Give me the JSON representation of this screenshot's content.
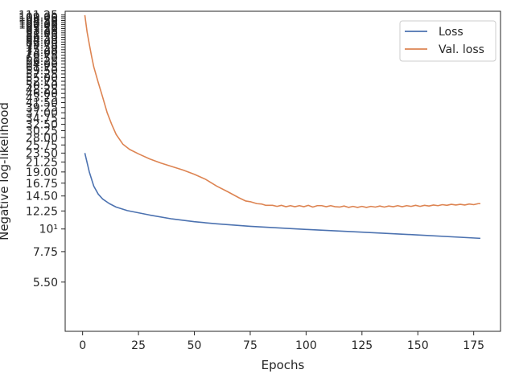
{
  "chart_data": {
    "type": "line",
    "xlabel": "Epochs",
    "ylabel": "Negative log-likelihood",
    "yscale": "log",
    "xlim": [
      -7.8,
      187
    ],
    "ylim": [
      3.16,
      116
    ],
    "x_ticks": [
      0,
      25,
      50,
      75,
      100,
      125,
      150,
      175
    ],
    "x_tick_labels": [
      "0",
      "25",
      "50",
      "75",
      "100",
      "125",
      "150",
      "175"
    ],
    "y_ticks": [
      5.5,
      7.75,
      10,
      12.25,
      14.5,
      16.75,
      19.0,
      21.25,
      23.5,
      25.75,
      28.0,
      30.25,
      32.5,
      34.75,
      37.0,
      39.25,
      41.5,
      43.75,
      46.0,
      48.25,
      50.5,
      52.75,
      55.0,
      57.25,
      59.5,
      61.75,
      64.0,
      66.25,
      68.5,
      70.75,
      73.0,
      75.25,
      77.5,
      79.75,
      82.0,
      84.25,
      86.5,
      88.75,
      91.0,
      93.25,
      95.5,
      97.75,
      100.0,
      102.25,
      104.5,
      106.75,
      109.0,
      111.25
    ],
    "y_tick_labels": [
      "5.50",
      "7.75",
      "10¹",
      "12.25",
      "14.50",
      "16.75",
      "19.00",
      "21.25",
      "23.50",
      "25.75",
      "28.00",
      "30.25",
      "32.50",
      "34.75",
      "37.00",
      "39.25",
      "41.50",
      "43.75",
      "46.00",
      "48.25",
      "50.50",
      "52.75",
      "55.00",
      "57.25",
      "59.50",
      "61.75",
      "64.00",
      "66.25",
      "68.50",
      "70.75",
      "73.00",
      "75.25",
      "77.50",
      "79.75",
      "82.00",
      "84.25",
      "86.50",
      "88.75",
      "91.00",
      "93.25",
      "95.50",
      "97.75",
      "100.00",
      "102.25",
      "104.50",
      "106.75",
      "109.00",
      "111.25"
    ],
    "legend_position": "top-right",
    "grid": false,
    "series": [
      {
        "name": "Loss",
        "color": "#4c72b0",
        "x": [
          1,
          3,
          5,
          7,
          9,
          12,
          15,
          20,
          25,
          30,
          40,
          50,
          60,
          75,
          100,
          125,
          150,
          178
        ],
        "values": [
          23.5,
          19.0,
          16.2,
          14.8,
          14.0,
          13.3,
          12.8,
          12.3,
          12.0,
          11.7,
          11.2,
          10.85,
          10.6,
          10.3,
          9.95,
          9.65,
          9.35,
          9.0
        ]
      },
      {
        "name": "Val. loss",
        "color": "#dd8452",
        "x": [
          1,
          2,
          3,
          4,
          5,
          7,
          9,
          11,
          13,
          15,
          18,
          21,
          25,
          30,
          35,
          40,
          45,
          50,
          55,
          60,
          65,
          70,
          73,
          75,
          78,
          80,
          82,
          85,
          87,
          89,
          91,
          93,
          95,
          97,
          99,
          101,
          103,
          105,
          107,
          109,
          111,
          113,
          115,
          117,
          119,
          121,
          123,
          125,
          127,
          129,
          131,
          133,
          135,
          137,
          139,
          141,
          143,
          145,
          147,
          149,
          151,
          153,
          155,
          157,
          159,
          161,
          163,
          165,
          167,
          169,
          171,
          173,
          175,
          177,
          178
        ],
        "values": [
          111.0,
          92.0,
          80.0,
          70.0,
          62.0,
          52.0,
          44.0,
          37.0,
          32.5,
          29.0,
          26.0,
          24.5,
          23.3,
          22.0,
          21.0,
          20.2,
          19.4,
          18.5,
          17.5,
          16.2,
          15.2,
          14.2,
          13.7,
          13.6,
          13.3,
          13.25,
          13.05,
          13.05,
          12.9,
          13.05,
          12.85,
          13.0,
          12.85,
          13.0,
          12.85,
          13.05,
          12.8,
          13.0,
          13.0,
          12.85,
          13.0,
          12.85,
          12.8,
          12.95,
          12.75,
          12.9,
          12.75,
          12.9,
          12.75,
          12.9,
          12.8,
          12.95,
          12.8,
          12.95,
          12.85,
          13.0,
          12.85,
          13.0,
          12.9,
          13.05,
          12.9,
          13.05,
          12.95,
          13.1,
          13.0,
          13.15,
          13.05,
          13.2,
          13.1,
          13.2,
          13.1,
          13.25,
          13.15,
          13.3,
          13.3
        ]
      }
    ]
  }
}
